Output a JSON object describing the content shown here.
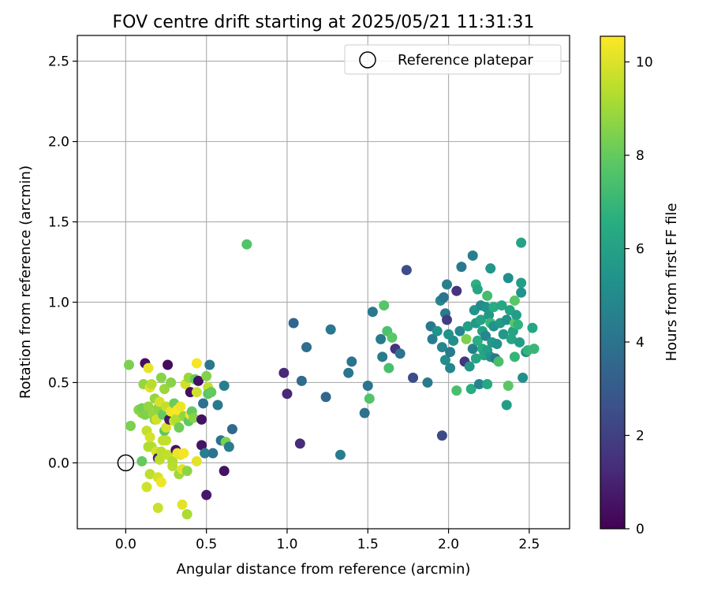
{
  "chart_data": {
    "type": "scatter",
    "title": "FOV centre drift starting at 2025/05/21 11:31:31",
    "xlabel": "Angular distance from reference (arcmin)",
    "ylabel": "Rotation from reference (arcmin)",
    "xlim": [
      -0.3,
      2.75
    ],
    "ylim": [
      -0.41,
      2.66
    ],
    "xticks": [
      0.0,
      0.5,
      1.0,
      1.5,
      2.0,
      2.5
    ],
    "xtick_labels": [
      "0.0",
      "0.5",
      "1.0",
      "1.5",
      "2.0",
      "2.5"
    ],
    "yticks": [
      0.0,
      0.5,
      1.0,
      1.5,
      2.0,
      2.5
    ],
    "ytick_labels": [
      "0.0",
      "0.5",
      "1.0",
      "1.5",
      "2.0",
      "2.5"
    ],
    "grid": true,
    "legend": {
      "placement": "upper right",
      "entries": [
        {
          "label": "Reference platepar",
          "marker": "open-circle",
          "color": "#000000"
        }
      ]
    },
    "reference_point": {
      "x": 0.0,
      "y": 0.0
    },
    "colorbar": {
      "label": "Hours from first FF file",
      "colormap": "viridis",
      "range": [
        0,
        10.55
      ],
      "ticks": [
        0,
        2,
        4,
        6,
        8,
        10
      ],
      "tick_labels": [
        "0",
        "2",
        "4",
        "6",
        "8",
        "10"
      ]
    },
    "points": [
      [
        0.02,
        0.61,
        8.4
      ],
      [
        0.03,
        0.23,
        8.4
      ],
      [
        0.08,
        0.33,
        8.6
      ],
      [
        0.1,
        0.31,
        8.7
      ],
      [
        0.1,
        0.34,
        8.3
      ],
      [
        0.1,
        0.01,
        8.0
      ],
      [
        0.11,
        0.49,
        8.8
      ],
      [
        0.12,
        0.62,
        0.4
      ],
      [
        0.12,
        0.3,
        8.5
      ],
      [
        0.13,
        0.2,
        9.6
      ],
      [
        0.13,
        -0.15,
        9.8
      ],
      [
        0.14,
        0.35,
        8.8
      ],
      [
        0.14,
        0.1,
        9.3
      ],
      [
        0.14,
        0.59,
        10.2
      ],
      [
        0.15,
        0.47,
        10.1
      ],
      [
        0.15,
        -0.07,
        9.5
      ],
      [
        0.15,
        0.16,
        9.9
      ],
      [
        0.16,
        0.49,
        9.4
      ],
      [
        0.16,
        0.1,
        9.3
      ],
      [
        0.17,
        0.3,
        8.9
      ],
      [
        0.18,
        0.4,
        8.8
      ],
      [
        0.18,
        0.27,
        8.6
      ],
      [
        0.19,
        0.27,
        9.8
      ],
      [
        0.19,
        0.07,
        9.9
      ],
      [
        0.2,
        0.34,
        8.7
      ],
      [
        0.2,
        -0.28,
        9.7
      ],
      [
        0.2,
        0.03,
        0.9
      ],
      [
        0.2,
        -0.09,
        9.9
      ],
      [
        0.21,
        0.02,
        9.5
      ],
      [
        0.21,
        0.38,
        9.9
      ],
      [
        0.22,
        0.53,
        8.6
      ],
      [
        0.22,
        0.07,
        9.5
      ],
      [
        0.22,
        -0.12,
        10.3
      ],
      [
        0.23,
        0.14,
        9.6
      ],
      [
        0.23,
        0.3,
        8.0
      ],
      [
        0.24,
        0.46,
        8.9
      ],
      [
        0.24,
        0.2,
        7.8
      ],
      [
        0.25,
        0.14,
        9.6
      ],
      [
        0.25,
        0.22,
        9.9
      ],
      [
        0.25,
        0.35,
        9.6
      ],
      [
        0.26,
        0.61,
        0.3
      ],
      [
        0.26,
        0.05,
        9.6
      ],
      [
        0.27,
        0.27,
        0.7
      ],
      [
        0.28,
        0.32,
        10.3
      ],
      [
        0.28,
        0.5,
        8.6
      ],
      [
        0.29,
        0.01,
        9.3
      ],
      [
        0.29,
        -0.02,
        9.4
      ],
      [
        0.3,
        0.31,
        10.4
      ],
      [
        0.3,
        0.26,
        9.8
      ],
      [
        0.3,
        0.37,
        8.1
      ],
      [
        0.31,
        0.08,
        0.5
      ],
      [
        0.31,
        0.27,
        9.3
      ],
      [
        0.32,
        0.33,
        10.5
      ],
      [
        0.32,
        0.06,
        10.3
      ],
      [
        0.33,
        0.22,
        8.2
      ],
      [
        0.33,
        -0.07,
        9.0
      ],
      [
        0.34,
        0.35,
        10.3
      ],
      [
        0.34,
        0.05,
        10.2
      ],
      [
        0.35,
        -0.04,
        10.1
      ],
      [
        0.35,
        -0.26,
        10.1
      ],
      [
        0.36,
        0.29,
        8.8
      ],
      [
        0.36,
        0.06,
        10.4
      ],
      [
        0.37,
        0.49,
        9.8
      ],
      [
        0.38,
        -0.32,
        9.2
      ],
      [
        0.38,
        -0.05,
        8.7
      ],
      [
        0.39,
        0.53,
        8.9
      ],
      [
        0.39,
        0.26,
        7.9
      ],
      [
        0.4,
        0.44,
        0.4
      ],
      [
        0.4,
        0.3,
        10.4
      ],
      [
        0.41,
        0.32,
        8.0
      ],
      [
        0.42,
        0.28,
        8.6
      ],
      [
        0.43,
        0.52,
        8.0
      ],
      [
        0.44,
        0.44,
        9.8
      ],
      [
        0.44,
        0.62,
        10.4
      ],
      [
        0.44,
        0.01,
        10.1
      ],
      [
        0.45,
        0.51,
        0.5
      ],
      [
        0.47,
        0.27,
        0.5
      ],
      [
        0.47,
        0.11,
        0.6
      ],
      [
        0.48,
        0.37,
        3.9
      ],
      [
        0.49,
        0.06,
        4.5
      ],
      [
        0.5,
        -0.2,
        0.7
      ],
      [
        0.5,
        0.54,
        8.5
      ],
      [
        0.51,
        0.47,
        9.6
      ],
      [
        0.51,
        0.43,
        7.8
      ],
      [
        0.52,
        0.61,
        4.2
      ],
      [
        0.53,
        0.44,
        8.0
      ],
      [
        0.54,
        0.06,
        4.0
      ],
      [
        0.57,
        0.36,
        4.3
      ],
      [
        0.59,
        0.14,
        4.0
      ],
      [
        0.61,
        -0.05,
        0.5
      ],
      [
        0.61,
        0.48,
        4.5
      ],
      [
        0.62,
        0.13,
        8.4
      ],
      [
        0.64,
        0.1,
        4.4
      ],
      [
        0.66,
        0.21,
        3.6
      ],
      [
        0.75,
        1.36,
        7.6
      ],
      [
        0.98,
        0.56,
        1.2
      ],
      [
        1.0,
        0.43,
        1.2
      ],
      [
        1.04,
        0.87,
        3.4
      ],
      [
        1.08,
        0.12,
        1.3
      ],
      [
        1.09,
        0.51,
        3.7
      ],
      [
        1.12,
        0.72,
        3.8
      ],
      [
        1.24,
        0.41,
        3.5
      ],
      [
        1.27,
        0.83,
        4.2
      ],
      [
        1.33,
        0.05,
        4.4
      ],
      [
        1.38,
        0.56,
        4.1
      ],
      [
        1.4,
        0.63,
        4.0
      ],
      [
        1.48,
        0.31,
        4.0
      ],
      [
        1.5,
        0.48,
        4.1
      ],
      [
        1.51,
        0.4,
        7.6
      ],
      [
        1.53,
        0.94,
        4.2
      ],
      [
        1.58,
        0.77,
        4.3
      ],
      [
        1.59,
        0.66,
        4.4
      ],
      [
        1.6,
        0.98,
        7.7
      ],
      [
        1.62,
        0.82,
        7.5
      ],
      [
        1.63,
        0.59,
        7.4
      ],
      [
        1.65,
        0.78,
        7.8
      ],
      [
        1.67,
        0.71,
        1.5
      ],
      [
        1.7,
        0.68,
        4.0
      ],
      [
        1.74,
        1.2,
        2.5
      ],
      [
        1.78,
        0.53,
        2.5
      ],
      [
        1.87,
        0.5,
        4.3
      ],
      [
        1.89,
        0.85,
        4.2
      ],
      [
        1.9,
        0.77,
        4.4
      ],
      [
        1.93,
        0.82,
        5.3
      ],
      [
        1.95,
        1.01,
        4.8
      ],
      [
        1.96,
        0.17,
        2.3
      ],
      [
        1.96,
        0.72,
        4.8
      ],
      [
        1.97,
        1.03,
        4.0
      ],
      [
        1.98,
        0.93,
        4.3
      ],
      [
        1.98,
        0.64,
        5.1
      ],
      [
        1.99,
        0.89,
        1.9
      ],
      [
        1.99,
        1.11,
        4.5
      ],
      [
        2.0,
        0.8,
        5.3
      ],
      [
        2.01,
        0.69,
        4.3
      ],
      [
        2.01,
        0.59,
        4.8
      ],
      [
        2.03,
        0.76,
        5.2
      ],
      [
        2.05,
        0.45,
        7.4
      ],
      [
        2.05,
        1.07,
        1.6
      ],
      [
        2.07,
        0.82,
        4.8
      ],
      [
        2.08,
        1.22,
        4.2
      ],
      [
        2.1,
        0.63,
        1.6
      ],
      [
        2.11,
        0.77,
        8.4
      ],
      [
        2.12,
        0.85,
        5.9
      ],
      [
        2.13,
        0.6,
        5.5
      ],
      [
        2.14,
        0.46,
        6.5
      ],
      [
        2.15,
        0.71,
        4.6
      ],
      [
        2.15,
        1.29,
        4.5
      ],
      [
        2.16,
        0.95,
        5.4
      ],
      [
        2.17,
        1.11,
        6.7
      ],
      [
        2.17,
        0.87,
        5.6
      ],
      [
        2.17,
        0.65,
        6.2
      ],
      [
        2.18,
        1.08,
        6.2
      ],
      [
        2.18,
        0.76,
        6.6
      ],
      [
        2.19,
        0.49,
        4.7
      ],
      [
        2.2,
        0.98,
        5.0
      ],
      [
        2.2,
        0.89,
        6.1
      ],
      [
        2.21,
        0.71,
        6.4
      ],
      [
        2.21,
        0.82,
        5.9
      ],
      [
        2.22,
        0.67,
        6.2
      ],
      [
        2.23,
        0.79,
        4.8
      ],
      [
        2.23,
        0.97,
        5.3
      ],
      [
        2.24,
        0.49,
        6.3
      ],
      [
        2.24,
        1.04,
        7.3
      ],
      [
        2.24,
        0.7,
        5.9
      ],
      [
        2.25,
        0.92,
        5.6
      ],
      [
        2.26,
        0.87,
        7.0
      ],
      [
        2.26,
        0.66,
        5.4
      ],
      [
        2.26,
        1.21,
        5.5
      ],
      [
        2.27,
        0.75,
        5.7
      ],
      [
        2.28,
        0.97,
        6.5
      ],
      [
        2.28,
        0.85,
        5.3
      ],
      [
        2.29,
        0.65,
        4.2
      ],
      [
        2.3,
        0.74,
        5.3
      ],
      [
        2.31,
        0.63,
        7.4
      ],
      [
        2.32,
        0.87,
        5.7
      ],
      [
        2.33,
        0.98,
        6.3
      ],
      [
        2.34,
        0.8,
        5.6
      ],
      [
        2.36,
        0.36,
        5.8
      ],
      [
        2.36,
        0.89,
        5.3
      ],
      [
        2.37,
        0.48,
        7.8
      ],
      [
        2.37,
        1.15,
        5.2
      ],
      [
        2.38,
        0.95,
        6.1
      ],
      [
        2.39,
        0.77,
        6.2
      ],
      [
        2.4,
        0.82,
        6.1
      ],
      [
        2.41,
        0.66,
        6.9
      ],
      [
        2.41,
        1.01,
        7.8
      ],
      [
        2.41,
        0.87,
        7.8
      ],
      [
        2.42,
        0.92,
        5.8
      ],
      [
        2.43,
        0.86,
        6.8
      ],
      [
        2.44,
        0.75,
        5.8
      ],
      [
        2.45,
        1.12,
        5.8
      ],
      [
        2.45,
        1.06,
        5.3
      ],
      [
        2.45,
        1.37,
        6.1
      ],
      [
        2.46,
        0.53,
        5.2
      ],
      [
        2.48,
        0.69,
        4.9
      ],
      [
        2.49,
        0.7,
        6.9
      ],
      [
        2.52,
        0.84,
        6.2
      ],
      [
        2.53,
        0.71,
        7.0
      ]
    ]
  }
}
